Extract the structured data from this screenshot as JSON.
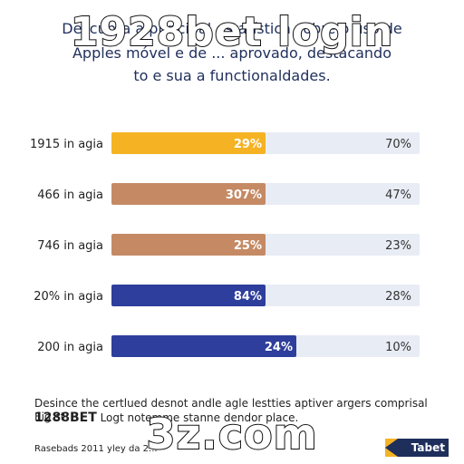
{
  "heading": {
    "line1": "Descubra a principal estatística sobre o uso de",
    "line2": "Apples móvel e de  ...  aprovado, destacando",
    "line3": "to e sua a functionaldades."
  },
  "overlay": {
    "top": "1928bet login",
    "bottom": "3z.com"
  },
  "chart_data": {
    "type": "bar",
    "categories": [
      "1915 in agia",
      "466 in agia",
      "746 in agia",
      "20% in agia",
      "200 in agia"
    ],
    "values": [
      29,
      307,
      25,
      84,
      24
    ],
    "value_labels": [
      "29%",
      "307%",
      "25%",
      "84%",
      "24%"
    ],
    "fill_fractions": [
      0.5,
      0.5,
      0.5,
      0.5,
      0.6
    ],
    "right_labels": [
      "70%",
      "47%",
      "23%",
      "28%",
      "10%"
    ],
    "colors": [
      "#f5b323",
      "#c58a64",
      "#c58a64",
      "#2e3e9c",
      "#2e3e9c"
    ],
    "track_color": "#e8ecf4",
    "xlabel": "",
    "ylabel": ""
  },
  "footer": {
    "line1": "Desince the certlued desnot andle agle lestties aptiver argers comprisal Eig st",
    "line2_strong": "1288BET",
    "line2_rest": " Logt notemme stanne dendor place.",
    "line3": "Rasebads 2011 yley da 2..."
  },
  "brand": {
    "label": "Tabet"
  }
}
